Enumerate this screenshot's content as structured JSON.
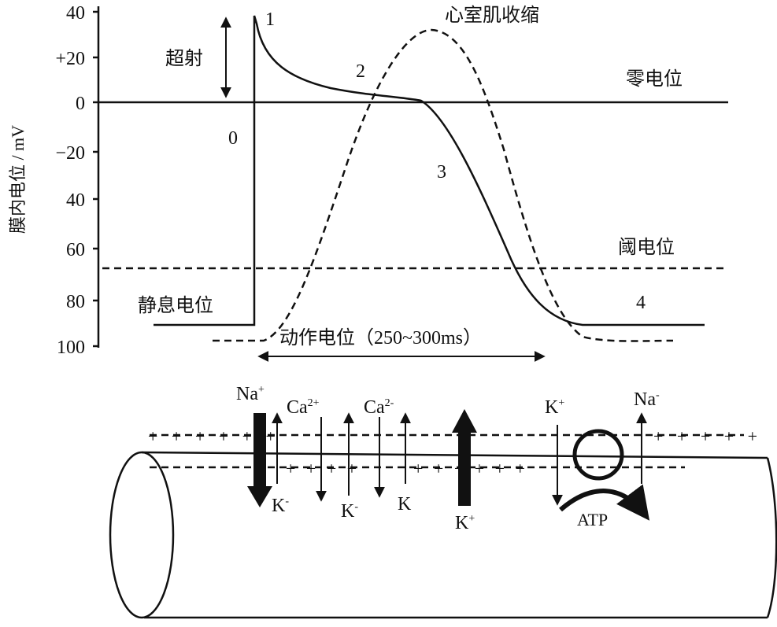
{
  "axis": {
    "label": "膜内电位 / mV",
    "ticks": [
      "40",
      "+20",
      "0",
      "−20",
      "40",
      "60",
      "80",
      "100"
    ]
  },
  "labels": {
    "overshoot": "超射",
    "contraction": "心室肌收缩",
    "zero_potential": "零电位",
    "threshold": "阈电位",
    "resting": "静息电位",
    "action_potential": "动作电位（250~300ms）"
  },
  "phases": [
    "0",
    "1",
    "2",
    "3",
    "4"
  ],
  "ions": [
    {
      "text": "Na",
      "sup": "+"
    },
    {
      "text": "Ca",
      "sup": "2+"
    },
    {
      "text": "Ca",
      "sup": "2-"
    },
    {
      "text": "K",
      "sup": "+"
    },
    {
      "text": "Na",
      "sup": "-"
    },
    {
      "text": "K",
      "sup": "-"
    },
    {
      "text": "K",
      "sup": "-"
    },
    {
      "text": "K"
    },
    {
      "text": "K",
      "sup": "+"
    },
    {
      "text": "ATP"
    }
  ]
}
